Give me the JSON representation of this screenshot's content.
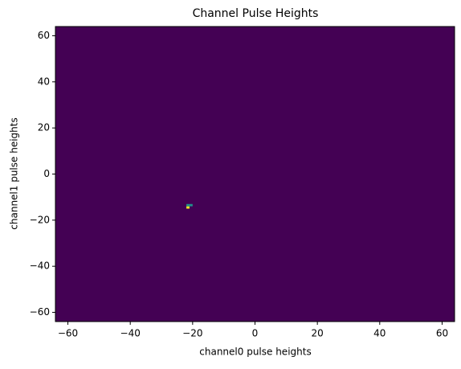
{
  "chart_data": {
    "type": "hist2d",
    "title": "Channel Pulse Heights",
    "x_label": "channel0 pulse heights",
    "y_label": "channel1 pulse heights",
    "xlim": [
      -64,
      64
    ],
    "ylim": [
      -64,
      64
    ],
    "xticks": [
      {
        "value": -60,
        "label": "−60"
      },
      {
        "value": -40,
        "label": "−40"
      },
      {
        "value": -20,
        "label": "−20"
      },
      0,
      20,
      40,
      60
    ],
    "yticks": [
      {
        "value": -60,
        "label": "−60"
      },
      {
        "value": -40,
        "label": "−40"
      },
      {
        "value": -20,
        "label": "−20"
      },
      0,
      20,
      40,
      60
    ],
    "bin_width": 1,
    "cells": [
      {
        "x": -22,
        "y": -15,
        "count": 2
      },
      {
        "x": -21,
        "y": -14,
        "count": 1
      },
      {
        "x": -22,
        "y": -14,
        "count": 1
      }
    ],
    "zlim": [
      0,
      2
    ],
    "colors": [
      "#440154",
      "#21918c",
      "#fde725"
    ]
  }
}
